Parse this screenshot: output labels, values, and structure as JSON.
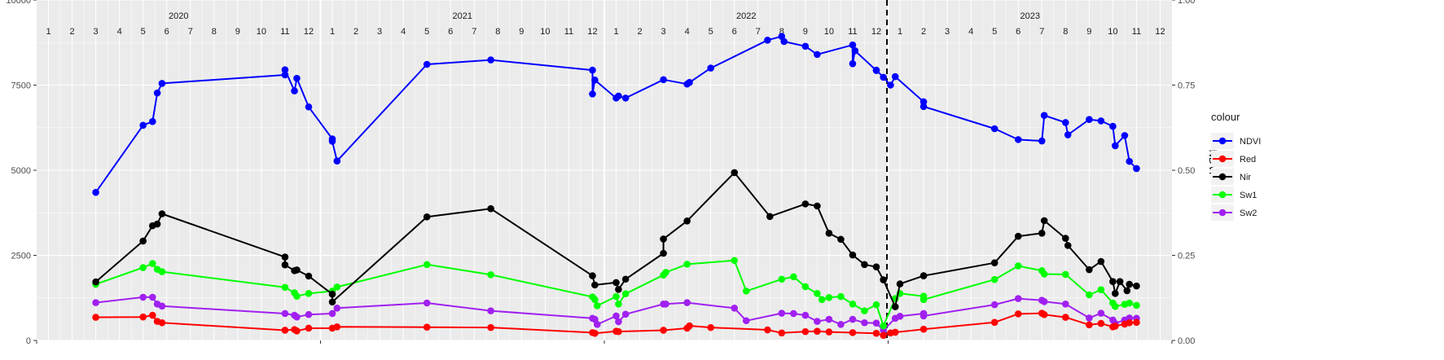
{
  "chart_data": {
    "type": "line",
    "legend": {
      "title": "colour",
      "position": "right"
    },
    "y_left": {
      "lim": [
        0,
        10000
      ],
      "ticks": [
        0,
        2500,
        5000,
        7500,
        10000
      ],
      "tick_labels": [
        "0",
        "2500",
        "5000",
        "7500",
        "10000"
      ]
    },
    "y_right": {
      "label": "NDVI",
      "lim": [
        0,
        1
      ],
      "ticks": [
        0,
        0.25,
        0.5,
        0.75,
        1
      ],
      "tick_labels": [
        "0.00",
        "0.25",
        "0.50",
        "0.75",
        "1.00"
      ]
    },
    "x_range_months": [
      0,
      48
    ],
    "grid": true,
    "facets": [
      {
        "year": "2020",
        "months": [
          "1",
          "2",
          "3",
          "4",
          "5",
          "6",
          "7",
          "8",
          "9",
          "10",
          "11",
          "12"
        ]
      },
      {
        "year": "2021",
        "months": [
          "1",
          "2",
          "3",
          "4",
          "5",
          "6",
          "7",
          "8",
          "9",
          "10",
          "11",
          "12"
        ]
      },
      {
        "year": "2022",
        "months": [
          "1",
          "2",
          "3",
          "4",
          "5",
          "6",
          "7",
          "8",
          "9",
          "10",
          "11",
          "12"
        ]
      },
      {
        "year": "2023",
        "months": [
          "1",
          "2",
          "3",
          "4",
          "5",
          "6",
          "7",
          "8",
          "9",
          "10",
          "11",
          "12"
        ]
      }
    ],
    "vline_x": 35.95,
    "series": [
      {
        "name": "NDVI",
        "color": "#0000ff",
        "axis": "right",
        "x": [
          2.5,
          4.5,
          4.9,
          5.1,
          5.3,
          10.5,
          10.5,
          10.9,
          11.0,
          11.5,
          12.5,
          12.5,
          12.7,
          16.5,
          19.2,
          23.5,
          23.5,
          23.6,
          24.5,
          24.6,
          24.9,
          26.5,
          27.5,
          27.6,
          28.5,
          30.9,
          31.5,
          31.6,
          32.5,
          33.0,
          34.5,
          34.5,
          34.6,
          35.5,
          35.5,
          35.8,
          36.1,
          36.3,
          37.5,
          37.5,
          40.5,
          41.5,
          42.5,
          42.6,
          43.5,
          43.6,
          44.5,
          45.0,
          45.5,
          45.6,
          46.0,
          46.2,
          46.5
        ],
        "y": [
          0.435,
          0.632,
          0.643,
          0.727,
          0.755,
          0.78,
          0.795,
          0.733,
          0.77,
          0.686,
          0.592,
          0.585,
          0.527,
          0.811,
          0.824,
          0.794,
          0.724,
          0.765,
          0.712,
          0.718,
          0.712,
          0.766,
          0.753,
          0.758,
          0.8,
          0.882,
          0.893,
          0.878,
          0.864,
          0.84,
          0.868,
          0.813,
          0.851,
          0.793,
          0.794,
          0.773,
          0.75,
          0.775,
          0.701,
          0.687,
          0.622,
          0.59,
          0.586,
          0.661,
          0.64,
          0.604,
          0.649,
          0.645,
          0.629,
          0.572,
          0.602,
          0.526,
          0.505
        ]
      },
      {
        "name": "Red",
        "color": "#ff0000",
        "axis": "left",
        "x": [
          2.5,
          4.5,
          4.9,
          5.1,
          5.3,
          10.5,
          10.9,
          11.0,
          11.5,
          12.5,
          12.7,
          16.5,
          19.2,
          23.5,
          23.6,
          24.5,
          24.6,
          26.5,
          27.5,
          27.6,
          28.5,
          30.9,
          31.5,
          32.5,
          33.0,
          33.5,
          34.5,
          35.5,
          35.8,
          36.1,
          36.3,
          37.5,
          40.5,
          41.5,
          42.5,
          42.6,
          43.5,
          44.5,
          45.0,
          45.5,
          45.6,
          46.0,
          46.2,
          46.5
        ],
        "y": [
          680,
          690,
          740,
          560,
          520,
          300,
          320,
          280,
          360,
          360,
          400,
          390,
          380,
          230,
          210,
          270,
          260,
          300,
          360,
          430,
          380,
          310,
          220,
          260,
          270,
          250,
          230,
          210,
          150,
          220,
          240,
          330,
          530,
          780,
          800,
          760,
          680,
          460,
          500,
          400,
          420,
          480,
          520,
          530
        ]
      },
      {
        "name": "Nir",
        "color": "#000000",
        "axis": "left",
        "x": [
          2.5,
          4.5,
          4.9,
          5.1,
          5.3,
          10.5,
          10.5,
          10.9,
          11.0,
          11.5,
          12.5,
          12.5,
          16.5,
          19.2,
          23.5,
          23.6,
          24.5,
          24.6,
          24.9,
          26.5,
          26.5,
          27.5,
          29.5,
          31.0,
          32.5,
          33.0,
          33.5,
          34.0,
          34.5,
          35.0,
          35.5,
          35.8,
          36.3,
          36.5,
          37.5,
          37.5,
          40.5,
          41.5,
          42.5,
          42.6,
          43.5,
          43.6,
          44.5,
          45.0,
          45.5,
          45.6,
          45.8,
          46.1,
          46.2,
          46.5
        ],
        "y": [
          1720,
          2920,
          3370,
          3420,
          3720,
          2450,
          2220,
          2050,
          2070,
          1890,
          1360,
          1130,
          3630,
          3870,
          1900,
          1630,
          1700,
          1500,
          1800,
          2560,
          2980,
          3510,
          4930,
          3640,
          4010,
          3950,
          3150,
          2970,
          2510,
          2230,
          2160,
          1780,
          990,
          1660,
          1900,
          1900,
          2280,
          3060,
          3150,
          3520,
          3000,
          2790,
          2080,
          2320,
          1730,
          1380,
          1730,
          1460,
          1650,
          1600
        ]
      },
      {
        "name": "Sw1",
        "color": "#00ff00",
        "axis": "left",
        "x": [
          2.5,
          4.5,
          4.9,
          5.1,
          5.3,
          10.5,
          10.9,
          11.0,
          11.5,
          12.5,
          12.7,
          16.5,
          19.2,
          23.5,
          23.6,
          23.7,
          24.5,
          24.6,
          24.9,
          26.5,
          26.6,
          27.5,
          29.5,
          30.0,
          31.5,
          32.0,
          32.5,
          33.0,
          33.2,
          33.5,
          34.0,
          34.5,
          35.0,
          35.5,
          35.8,
          36.3,
          36.5,
          37.5,
          37.5,
          40.5,
          41.5,
          42.5,
          42.6,
          43.5,
          44.5,
          45.0,
          45.5,
          45.6,
          46.0,
          46.2,
          46.5
        ],
        "y": [
          1650,
          2140,
          2260,
          2090,
          2020,
          1560,
          1400,
          1300,
          1380,
          1450,
          1570,
          2230,
          1930,
          1280,
          1200,
          1020,
          1290,
          1070,
          1370,
          1920,
          2000,
          2240,
          2350,
          1450,
          1800,
          1870,
          1580,
          1380,
          1200,
          1260,
          1290,
          1070,
          870,
          1050,
          430,
          1230,
          1380,
          1300,
          1200,
          1790,
          2190,
          2050,
          1950,
          1940,
          1340,
          1490,
          1100,
          1000,
          1060,
          1100,
          1030
        ]
      },
      {
        "name": "Sw2",
        "color": "#a020f0",
        "axis": "left",
        "x": [
          2.5,
          4.5,
          4.9,
          5.1,
          5.3,
          10.5,
          10.9,
          11.0,
          11.5,
          12.5,
          12.7,
          16.5,
          19.2,
          23.5,
          23.6,
          23.7,
          24.5,
          24.6,
          24.9,
          26.5,
          26.6,
          27.5,
          29.5,
          30.0,
          31.5,
          32.0,
          32.5,
          33.0,
          33.5,
          34.0,
          34.5,
          35.0,
          35.5,
          35.8,
          36.3,
          36.5,
          37.5,
          37.5,
          40.5,
          41.5,
          42.5,
          42.6,
          43.5,
          44.5,
          45.0,
          45.5,
          45.6,
          46.0,
          46.2,
          46.5
        ],
        "y": [
          1110,
          1270,
          1270,
          1070,
          1010,
          790,
          740,
          690,
          760,
          790,
          950,
          1100,
          870,
          650,
          620,
          470,
          720,
          550,
          770,
          1070,
          1070,
          1110,
          950,
          580,
          800,
          790,
          740,
          560,
          620,
          470,
          620,
          520,
          510,
          300,
          650,
          710,
          790,
          720,
          1050,
          1230,
          1180,
          1140,
          1070,
          660,
          800,
          600,
          500,
          600,
          660,
          650
        ]
      }
    ]
  }
}
